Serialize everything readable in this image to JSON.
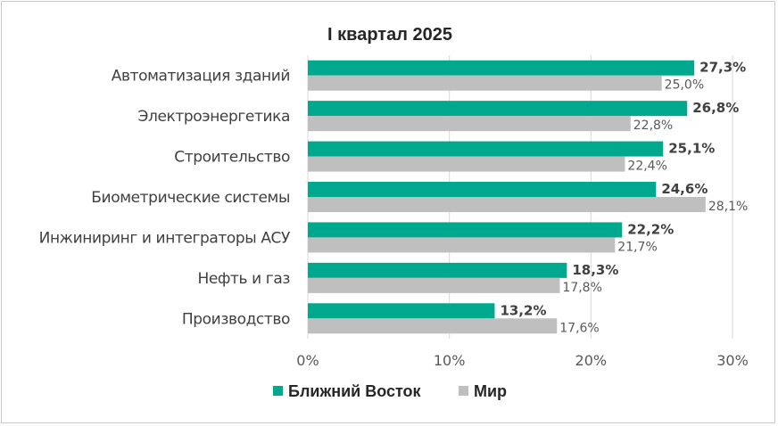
{
  "chart_data": {
    "type": "bar",
    "orientation": "horizontal",
    "title": "I квартал 2025",
    "categories": [
      "Автоматизация зданий",
      "Электроэнергетика",
      "Строительство",
      "Биометрические системы",
      "Инжиниринг и интеграторы АСУ",
      "Нефть и газ",
      "Производство"
    ],
    "series": [
      {
        "name": "Ближний Восток",
        "color": "#00a88e",
        "values": [
          27.3,
          26.8,
          25.1,
          24.6,
          22.2,
          18.3,
          13.2
        ],
        "labels": [
          "27,3%",
          "26,8%",
          "25,1%",
          "24,6%",
          "22,2%",
          "18,3%",
          "13,2%"
        ]
      },
      {
        "name": "Мир",
        "color": "#bfbfbf",
        "values": [
          25.0,
          22.8,
          22.4,
          28.1,
          21.7,
          17.8,
          17.6
        ],
        "labels": [
          "25,0%",
          "22,8%",
          "22,4%",
          "28,1%",
          "21,7%",
          "17,8%",
          "17,6%"
        ]
      }
    ],
    "xlim": [
      0,
      30
    ],
    "xticks": [
      0,
      10,
      20,
      30
    ],
    "xtick_labels": [
      "0%",
      "10%",
      "20%",
      "30%"
    ],
    "grid": true,
    "legend_position": "bottom"
  }
}
